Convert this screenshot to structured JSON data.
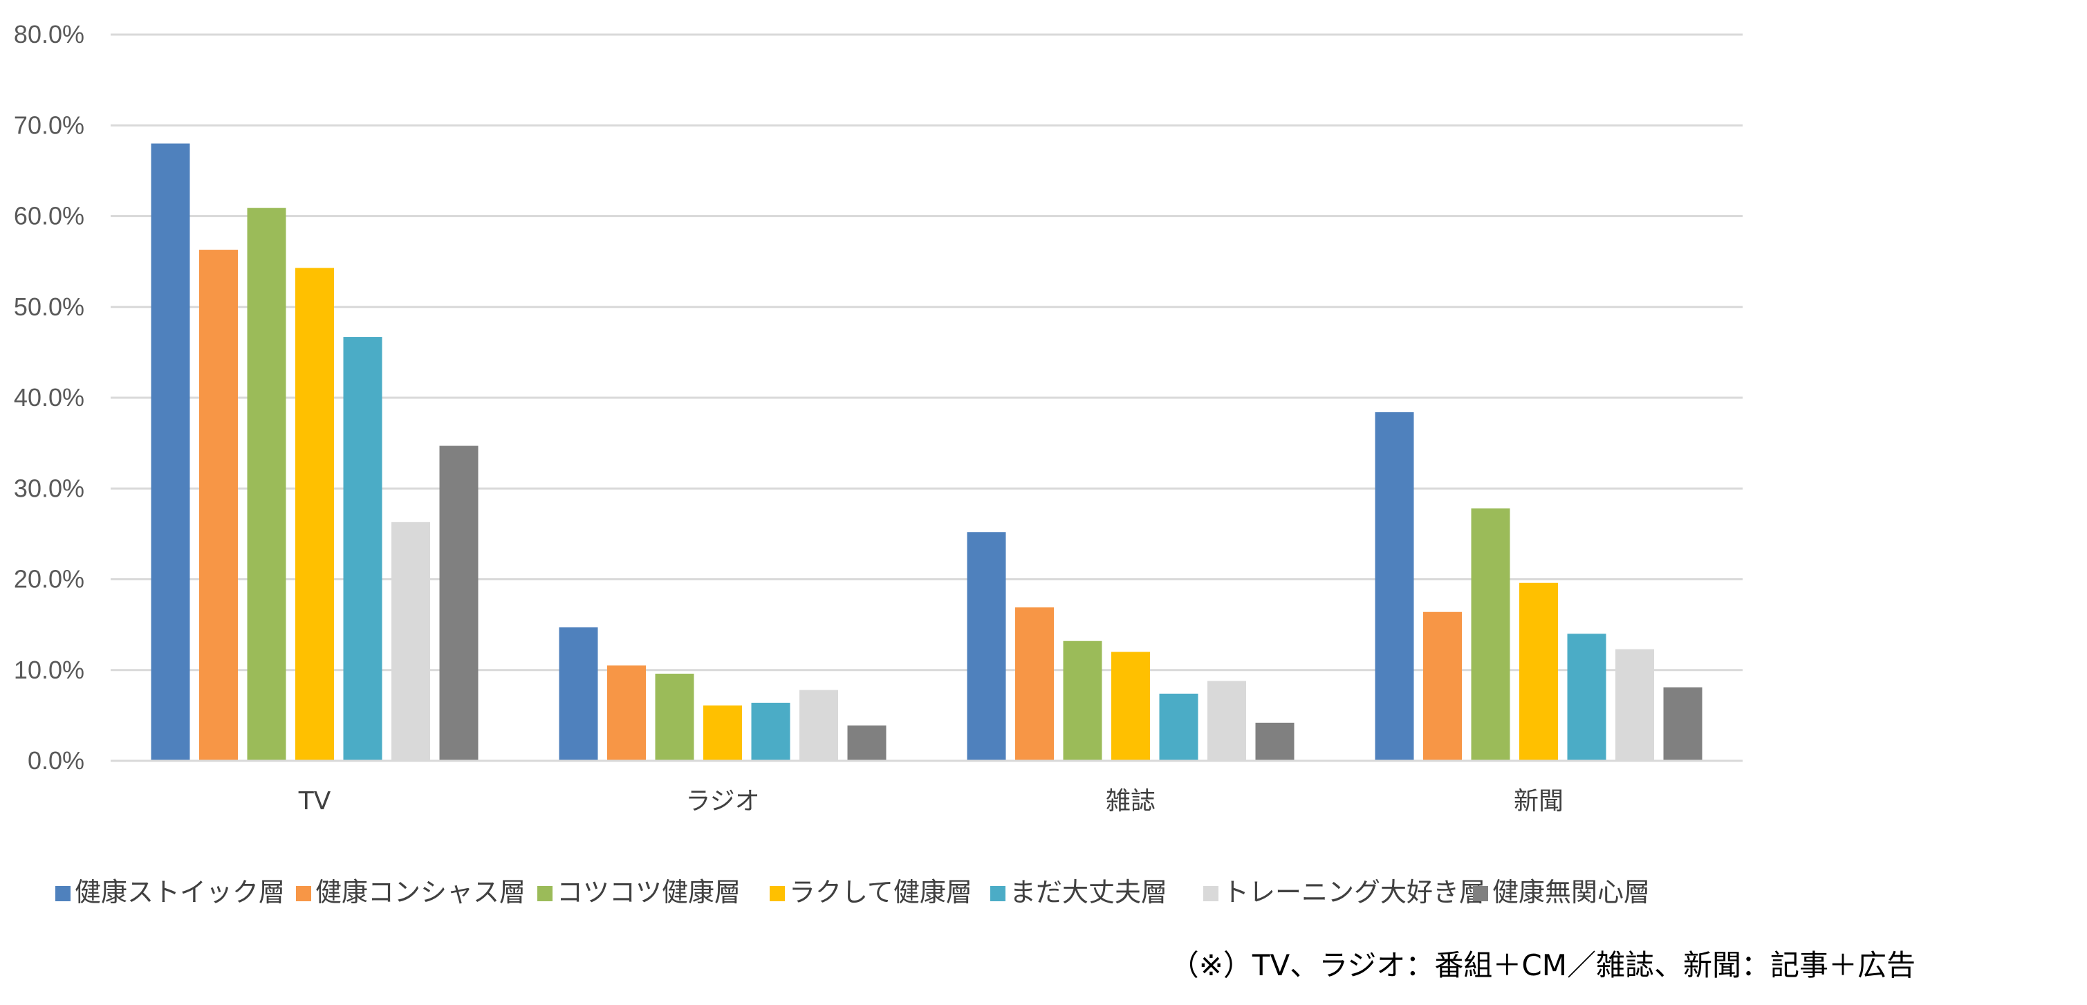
{
  "chart_data": {
    "type": "bar",
    "categories": [
      "TV",
      "ラジオ",
      "雑誌",
      "新聞"
    ],
    "ylim": [
      0,
      80
    ],
    "yticks": [
      "0.0%",
      "10.0%",
      "20.0%",
      "30.0%",
      "40.0%",
      "50.0%",
      "60.0%",
      "70.0%",
      "80.0%"
    ],
    "grid": true,
    "legend_position": "bottom",
    "series": [
      {
        "name": "健康ストイック層",
        "color": "#4F81BD",
        "values": [
          68.0,
          14.7,
          25.2,
          38.4
        ]
      },
      {
        "name": "健康コンシャス層",
        "color": "#F79646",
        "values": [
          56.3,
          10.5,
          16.9,
          16.4
        ]
      },
      {
        "name": "コツコツ健康層",
        "color": "#9BBB59",
        "values": [
          60.9,
          9.6,
          13.2,
          27.8
        ]
      },
      {
        "name": "ラクして健康層",
        "color": "#FFC000",
        "values": [
          54.3,
          6.1,
          12.0,
          19.6
        ]
      },
      {
        "name": "まだ大丈夫層",
        "color": "#4BACC6",
        "values": [
          46.7,
          6.4,
          7.4,
          14.0
        ]
      },
      {
        "name": "トレーニング大好き層",
        "color": "#D9D9D9",
        "values": [
          26.3,
          7.8,
          8.8,
          12.3
        ]
      },
      {
        "name": "健康無関心層",
        "color": "#808080",
        "values": [
          34.7,
          3.9,
          4.2,
          8.1
        ]
      }
    ],
    "annotation": "（※）TV、ラジオ：番組＋CM／雑誌、新聞：記事＋広告"
  }
}
